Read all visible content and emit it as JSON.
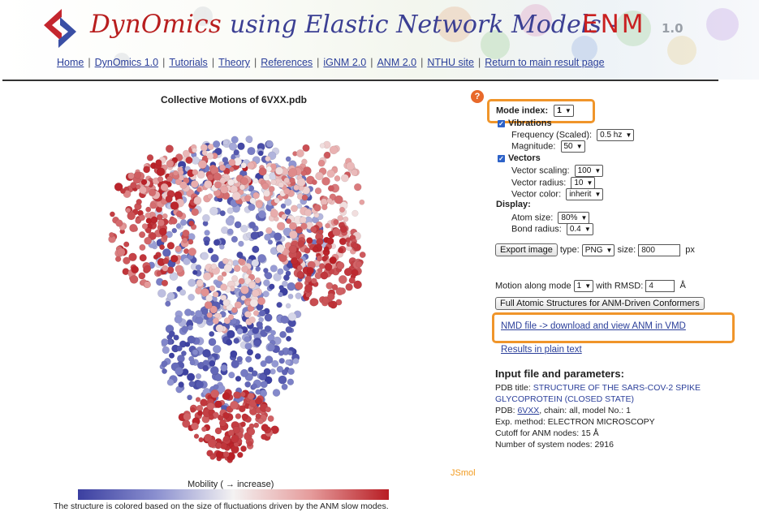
{
  "header": {
    "app_name": "DynOmics",
    "subtitle": "using Elastic Network Models -",
    "enm_label": "ENM",
    "version": "1.0",
    "brand_red": "#b81e1e",
    "brand_blue": "#3b3f93"
  },
  "nav": {
    "links": [
      "Home",
      "DynOmics 1.0",
      "Tutorials",
      "Theory",
      "References",
      "iGNM 2.0",
      "ANM 2.0",
      "NTHU site",
      "Return to main result page"
    ]
  },
  "viewer": {
    "title": "Collective Motions of 6VXX.pdb",
    "jsmol_label": "JSmol",
    "mobility_label": "Mobility ( → increase)",
    "color_note": "The structure is colored based on the size of fluctuations driven by the ANM slow modes."
  },
  "controls": {
    "help_icon": "question-icon",
    "mode_index_label": "Mode index:",
    "mode_index_value": "1",
    "vibrations_label": "Vibrations",
    "frequency_label": "Frequency (Scaled):",
    "frequency_value": "0.5 hz",
    "magnitude_label": "Magnitude:",
    "magnitude_value": "50",
    "vectors_label": "Vectors",
    "vector_scaling_label": "Vector scaling:",
    "vector_scaling_value": "100",
    "vector_radius_label": "Vector radius:",
    "vector_radius_value": "10",
    "vector_color_label": "Vector color:",
    "vector_color_value": "inherit",
    "display_label": "Display:",
    "atom_size_label": "Atom size:",
    "atom_size_value": "80%",
    "bond_radius_label": "Bond radius:",
    "bond_radius_value": "0.4",
    "export_button": "Export image",
    "type_label": "type:",
    "type_value": "PNG",
    "size_label": "size:",
    "size_value": "800",
    "px_label": "px",
    "motion_label": "Motion along mode",
    "motion_mode_value": "1",
    "rmsd_label": "with RMSD:",
    "rmsd_value": "4",
    "angstrom_label": "Å",
    "full_atomic_button": "Full Atomic Structures for ANM-Driven Conformers",
    "nmd_link": "NMD file -> download and view ANM in VMD",
    "plain_text_link": "Results in plain text",
    "highlight_color": "#f0952a"
  },
  "input_info": {
    "heading": "Input file and parameters:",
    "pdb_title_label": "PDB title:",
    "pdb_title_line1": "STRUCTURE OF THE SARS-COV-2 SPIKE",
    "pdb_title_line2": "GLYCOPROTEIN (CLOSED STATE)",
    "pdb_label": "PDB:",
    "pdb_id": "6VXX",
    "chain_text": ",   chain: all,   model No.: 1",
    "exp_method": "Exp. method: ELECTRON MICROSCOPY",
    "cutoff": "Cutoff for ANM nodes: 15 Å",
    "num_nodes": "Number of system nodes: 2916"
  }
}
